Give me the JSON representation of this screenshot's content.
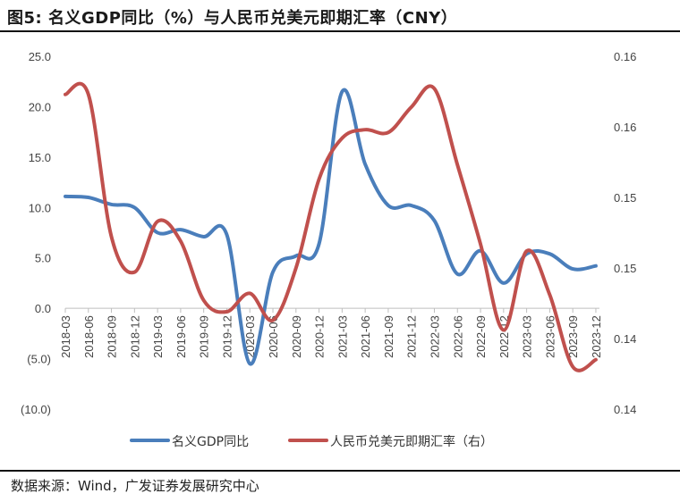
{
  "title": "图5:  名义GDP同比（%）与人民币兑美元即期汇率（CNY）",
  "source": "数据来源：Wind，广发证券发展研究中心",
  "colors": {
    "gdp": "#4a7ebb",
    "fx": "#c0504d",
    "axis": "#bfbfbf",
    "text": "#444444"
  },
  "chart_data": {
    "type": "line",
    "title": "名义GDP同比（%）与人民币兑美元即期汇率（CNY）",
    "x": [
      "2018-03",
      "2018-06",
      "2018-09",
      "2018-12",
      "2019-03",
      "2019-06",
      "2019-09",
      "2019-12",
      "2020-03",
      "2020-06",
      "2020-09",
      "2020-12",
      "2021-03",
      "2021-06",
      "2021-09",
      "2021-12",
      "2022-03",
      "2022-06",
      "2022-09",
      "2022-12",
      "2023-03",
      "2023-06",
      "2023-09",
      "2023-12"
    ],
    "left_axis": {
      "ylim": [
        -10,
        25
      ],
      "ticks": [
        25,
        20,
        15,
        10,
        5,
        0,
        -5,
        -10
      ],
      "tick_labels": [
        "25.0",
        "20.0",
        "15.0",
        "10.0",
        "5.0",
        "0.0",
        "(5.0)",
        "(10.0)"
      ]
    },
    "right_axis": {
      "ylim": [
        0.135,
        0.16
      ],
      "ticks": [
        0.16,
        0.155,
        0.15,
        0.145,
        0.14,
        0.135
      ],
      "tick_labels": [
        "0.16",
        "0.16",
        "0.15",
        "0.15",
        "0.14",
        "0.14"
      ]
    },
    "series": [
      {
        "name": "名义GDP同比",
        "axis": "left",
        "values": [
          11.1,
          11.0,
          10.3,
          10.0,
          7.5,
          7.8,
          7.1,
          7.3,
          -5.5,
          3.6,
          5.2,
          6.4,
          21.5,
          14.3,
          10.2,
          10.2,
          8.7,
          3.4,
          5.7,
          2.5,
          5.4,
          5.4,
          3.9,
          4.2
        ]
      },
      {
        "name": "人民币兑美元即期汇率（右）",
        "axis": "right",
        "values": [
          0.1573,
          0.1573,
          0.1472,
          0.1447,
          0.1483,
          0.1469,
          0.1427,
          0.1419,
          0.1432,
          0.1413,
          0.145,
          0.1513,
          0.1542,
          0.1548,
          0.1546,
          0.1564,
          0.1577,
          0.1523,
          0.1467,
          0.1406,
          0.1462,
          0.1431,
          0.138,
          0.1385
        ]
      }
    ],
    "legend": {
      "position": "bottom",
      "entries": [
        "名义GDP同比",
        "人民币兑美元即期汇率（右）"
      ]
    },
    "grid": false
  }
}
